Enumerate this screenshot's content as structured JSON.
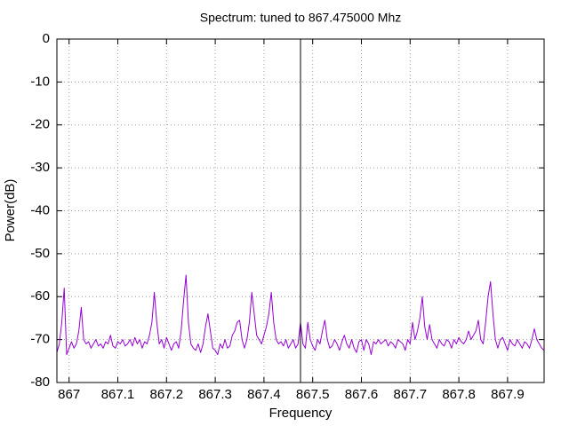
{
  "chart_data": {
    "type": "line",
    "title": "Spectrum: tuned to 867.475000 Mhz",
    "x_label": "Frequency",
    "y_label": "Power(dB)",
    "xlim": [
      866.975,
      867.975
    ],
    "ylim": [
      -80,
      0
    ],
    "xticks": [
      867,
      867.1,
      867.2,
      867.3,
      867.4,
      867.5,
      867.6,
      867.7,
      867.8,
      867.9
    ],
    "yticks": [
      0,
      -10,
      -20,
      -30,
      -40,
      -50,
      -60,
      -70,
      -80
    ],
    "grid": true,
    "vlines": [
      867.475
    ],
    "x": [
      866.975,
      866.98,
      866.985,
      866.99,
      866.995,
      867,
      867.005,
      867.01,
      867.015,
      867.02,
      867.025,
      867.03,
      867.035,
      867.04,
      867.045,
      867.05,
      867.055,
      867.06,
      867.065,
      867.07,
      867.075,
      867.08,
      867.085,
      867.09,
      867.095,
      867.1,
      867.105,
      867.11,
      867.115,
      867.12,
      867.125,
      867.13,
      867.135,
      867.14,
      867.145,
      867.15,
      867.155,
      867.16,
      867.165,
      867.17,
      867.175,
      867.18,
      867.185,
      867.19,
      867.195,
      867.2,
      867.205,
      867.21,
      867.215,
      867.22,
      867.225,
      867.23,
      867.235,
      867.24,
      867.245,
      867.25,
      867.255,
      867.26,
      867.265,
      867.27,
      867.275,
      867.28,
      867.285,
      867.29,
      867.295,
      867.3,
      867.305,
      867.31,
      867.315,
      867.32,
      867.325,
      867.33,
      867.335,
      867.34,
      867.345,
      867.35,
      867.355,
      867.36,
      867.365,
      867.37,
      867.375,
      867.38,
      867.385,
      867.39,
      867.395,
      867.4,
      867.405,
      867.41,
      867.415,
      867.42,
      867.425,
      867.43,
      867.435,
      867.44,
      867.445,
      867.45,
      867.455,
      867.46,
      867.465,
      867.47,
      867.475,
      867.48,
      867.485,
      867.49,
      867.495,
      867.5,
      867.505,
      867.51,
      867.515,
      867.52,
      867.525,
      867.53,
      867.535,
      867.54,
      867.545,
      867.55,
      867.555,
      867.56,
      867.565,
      867.57,
      867.575,
      867.58,
      867.585,
      867.59,
      867.595,
      867.6,
      867.605,
      867.61,
      867.615,
      867.62,
      867.625,
      867.63,
      867.635,
      867.64,
      867.645,
      867.65,
      867.655,
      867.66,
      867.665,
      867.67,
      867.675,
      867.68,
      867.685,
      867.69,
      867.695,
      867.7,
      867.705,
      867.71,
      867.715,
      867.72,
      867.725,
      867.73,
      867.735,
      867.74,
      867.745,
      867.75,
      867.755,
      867.76,
      867.765,
      867.77,
      867.775,
      867.78,
      867.785,
      867.79,
      867.795,
      867.8,
      867.805,
      867.81,
      867.815,
      867.82,
      867.825,
      867.83,
      867.835,
      867.84,
      867.845,
      867.85,
      867.855,
      867.86,
      867.865,
      867.87,
      867.875,
      867.88,
      867.885,
      867.89,
      867.895,
      867.9,
      867.905,
      867.91,
      867.915,
      867.92,
      867.925,
      867.93,
      867.935,
      867.94,
      867.945,
      867.95,
      867.955,
      867.96,
      867.965,
      867.97,
      867.975
    ],
    "series": [
      {
        "color": "#9400d3",
        "values": [
          -73,
          -71,
          -66,
          -58,
          -73.5,
          -72,
          -70.5,
          -72,
          -71,
          -68,
          -62.5,
          -70,
          -71,
          -70.5,
          -72,
          -71,
          -70,
          -71.5,
          -71,
          -72,
          -70.5,
          -71,
          -69,
          -71.5,
          -72,
          -70.5,
          -71,
          -70,
          -71.5,
          -71,
          -70,
          -71.5,
          -69.5,
          -71,
          -70,
          -72,
          -70.5,
          -71,
          -69,
          -66,
          -59,
          -66,
          -71,
          -70,
          -72,
          -69.5,
          -71,
          -72.5,
          -71,
          -70.5,
          -72,
          -68,
          -61,
          -55,
          -66,
          -71,
          -72,
          -72.5,
          -71,
          -73,
          -71,
          -67,
          -64,
          -68,
          -72,
          -72.5,
          -73.5,
          -71,
          -72,
          -70,
          -72,
          -71.5,
          -69,
          -68,
          -66,
          -65.5,
          -70,
          -72,
          -70,
          -66,
          -59,
          -64,
          -69,
          -70,
          -71,
          -69,
          -67,
          -64,
          -59,
          -66,
          -70,
          -71,
          -70.5,
          -71.5,
          -70,
          -72,
          -71,
          -70,
          -72,
          -71,
          -66,
          -71,
          -72,
          -66,
          -70,
          -71.5,
          -72.5,
          -70,
          -71,
          -68,
          -65.5,
          -70,
          -72,
          -71.5,
          -70,
          -71,
          -72.5,
          -70.5,
          -69,
          -71,
          -72,
          -70,
          -72,
          -73,
          -70.5,
          -70,
          -72.5,
          -70,
          -71,
          -73.5,
          -70.5,
          -71,
          -70,
          -71,
          -70.5,
          -70,
          -71.5,
          -70.5,
          -71,
          -72,
          -70,
          -70.5,
          -71,
          -72.5,
          -70,
          -71,
          -66,
          -70,
          -68,
          -65,
          -60,
          -67,
          -70,
          -66.5,
          -70,
          -71,
          -72,
          -70,
          -71,
          -71.5,
          -70,
          -70.5,
          -72,
          -70,
          -71,
          -69.5,
          -70.5,
          -71,
          -70,
          -68,
          -70,
          -69,
          -68,
          -65.5,
          -70,
          -71,
          -66,
          -60,
          -56.5,
          -64,
          -70,
          -72,
          -70,
          -69.5,
          -71,
          -72.5,
          -70,
          -71,
          -71.5,
          -70,
          -71,
          -72,
          -70.5,
          -71,
          -72,
          -70,
          -67.5,
          -70,
          -71,
          -72,
          -72.5
        ]
      }
    ]
  }
}
